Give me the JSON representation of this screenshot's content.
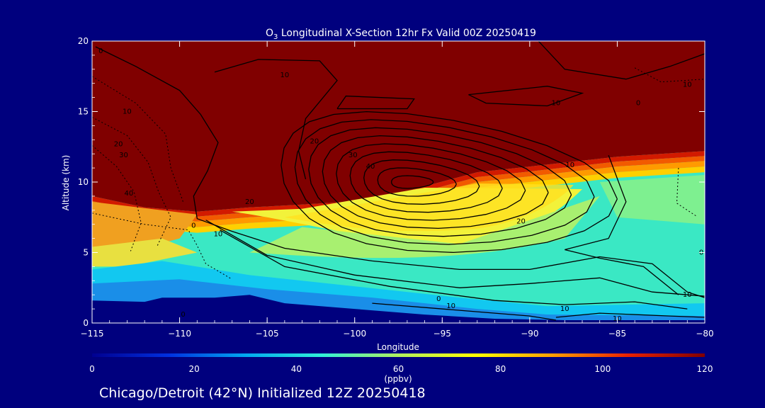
{
  "chart_data": {
    "type": "heatmap",
    "title_prefix": "O",
    "title_sub": "3",
    "title_rest": " Longitudinal X-Section 12hr  Fx Valid 00Z 20250419",
    "xlabel": "Longitude",
    "ylabel": "Altitude (km)",
    "xlim": [
      -115,
      -80
    ],
    "ylim": [
      0,
      20
    ],
    "x_ticks": [
      -115,
      -110,
      -105,
      -100,
      -95,
      -90,
      -85,
      -80
    ],
    "x_tick_labels": [
      "−115",
      "−110",
      "−105",
      "−100",
      "−95",
      "−90",
      "−85",
      "−80"
    ],
    "y_ticks": [
      0,
      5,
      10,
      15,
      20
    ],
    "y_tick_labels": [
      "0",
      "5",
      "10",
      "15",
      "20"
    ],
    "colorbar": {
      "min": 0,
      "max": 120,
      "ticks": [
        0,
        20,
        40,
        60,
        80,
        100,
        120
      ],
      "tick_labels": [
        "0",
        "20",
        "40",
        "60",
        "80",
        "100",
        "120"
      ],
      "unit": "(ppbv)",
      "colors": [
        "#000090",
        "#0030e0",
        "#00a8f0",
        "#30f0d8",
        "#b0f060",
        "#ffff00",
        "#ffa000",
        "#e82000",
        "#800000"
      ]
    },
    "terrain_km": [
      [
        -115,
        1.6
      ],
      [
        -112,
        1.5
      ],
      [
        -111,
        1.8
      ],
      [
        -108,
        1.8
      ],
      [
        -106,
        2.0
      ],
      [
        -104,
        1.4
      ],
      [
        -100,
        1.0
      ],
      [
        -96,
        0.6
      ],
      [
        -92,
        0.3
      ],
      [
        -88,
        0.2
      ],
      [
        -80,
        0.2
      ]
    ],
    "tropopause_km": [
      [
        -115,
        9.0
      ],
      [
        -112,
        8.2
      ],
      [
        -109,
        7.9
      ],
      [
        -106,
        8.2
      ],
      [
        -103,
        8.4
      ],
      [
        -99,
        8.7
      ],
      [
        -96,
        9.7
      ],
      [
        -93,
        10.7
      ],
      [
        -90,
        11.1
      ],
      [
        -85,
        11.8
      ],
      [
        -80,
        12.2
      ]
    ],
    "contour_labels": [
      {
        "text": "10",
        "lon": -104,
        "alt": 17.6
      },
      {
        "text": "10",
        "lon": -88.5,
        "alt": 15.6
      },
      {
        "text": "10",
        "lon": -81,
        "alt": 16.9
      },
      {
        "text": "0",
        "lon": -83.8,
        "alt": 15.6
      },
      {
        "text": "0",
        "lon": -114.5,
        "alt": 19.3
      },
      {
        "text": "10",
        "lon": -113,
        "alt": 15.0
      },
      {
        "text": "20",
        "lon": -113.5,
        "alt": 12.7
      },
      {
        "text": "30",
        "lon": -113.2,
        "alt": 11.9
      },
      {
        "text": "40",
        "lon": -112.9,
        "alt": 9.2
      },
      {
        "text": "20",
        "lon": -102.3,
        "alt": 12.9
      },
      {
        "text": "30",
        "lon": -100.1,
        "alt": 11.9
      },
      {
        "text": "40",
        "lon": -99.1,
        "alt": 11.1
      },
      {
        "text": "20",
        "lon": -106,
        "alt": 8.6
      },
      {
        "text": "10",
        "lon": -107.8,
        "alt": 6.3
      },
      {
        "text": "0",
        "lon": -109.2,
        "alt": 6.9
      },
      {
        "text": "10",
        "lon": -87.7,
        "alt": 11.2
      },
      {
        "text": "20",
        "lon": -90.5,
        "alt": 7.2
      },
      {
        "text": "0",
        "lon": -95.2,
        "alt": 1.7
      },
      {
        "text": "10",
        "lon": -94.5,
        "alt": 1.2
      },
      {
        "text": "10",
        "lon": -88,
        "alt": 1.0
      },
      {
        "text": "10",
        "lon": -85,
        "alt": 0.3
      },
      {
        "text": "10",
        "lon": -81,
        "alt": 2.0
      },
      {
        "text": "0",
        "lon": -80.2,
        "alt": 5.0
      },
      {
        "text": "0",
        "lon": -109.8,
        "alt": 0.6
      }
    ]
  },
  "footer": {
    "text": "Chicago/Detroit (42°N) Initialized 12Z 20250418"
  }
}
